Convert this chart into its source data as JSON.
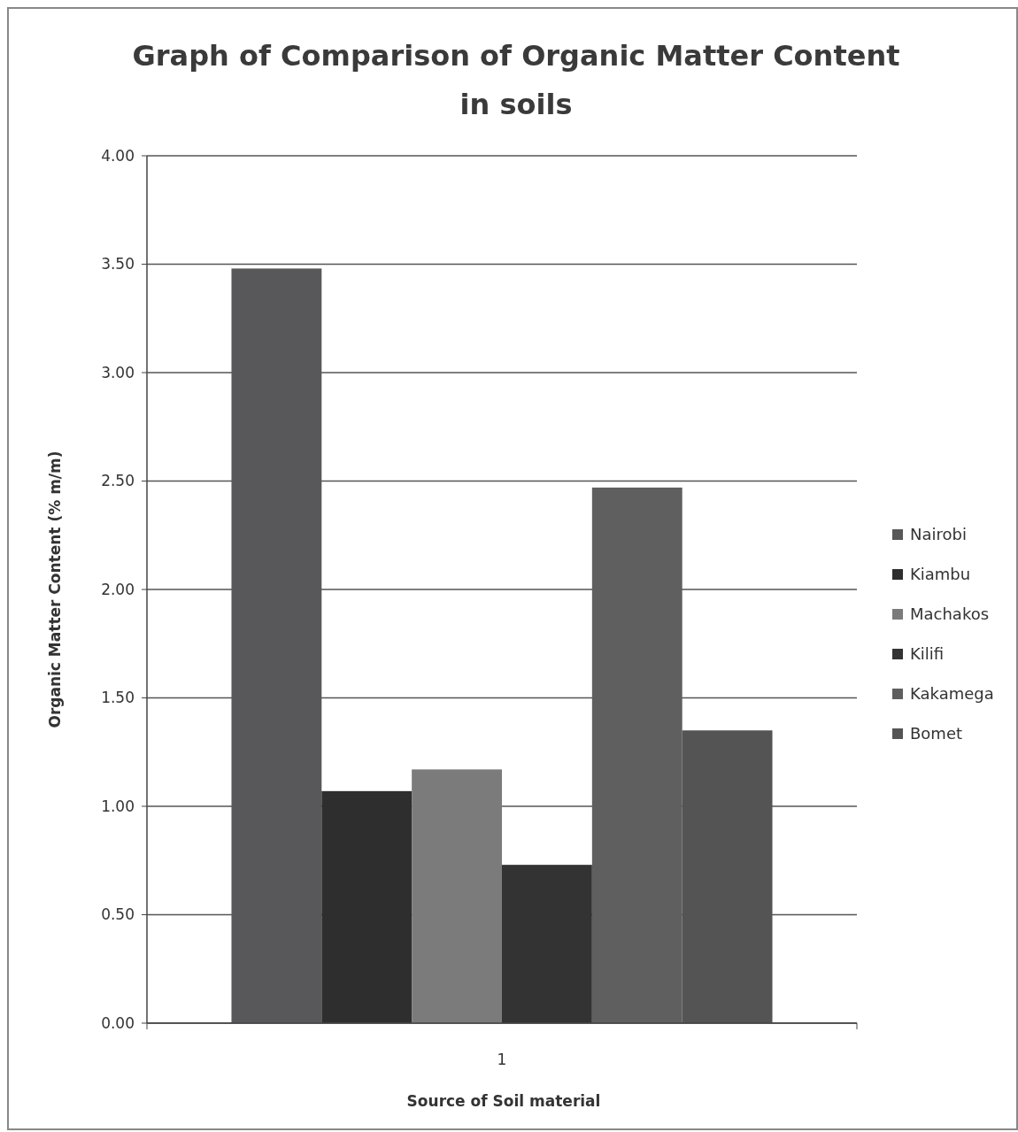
{
  "chart_data": {
    "type": "bar",
    "title": "Graph of Comparison of Organic Matter Content in soils",
    "xlabel": "Source of Soil material",
    "ylabel": "Organic Matter Content (% m/m)",
    "categories": [
      "1"
    ],
    "series": [
      {
        "name": "Nairobi",
        "color": "#58585a",
        "values": [
          3.48
        ]
      },
      {
        "name": "Kiambu",
        "color": "#2e2e2e",
        "values": [
          1.07
        ]
      },
      {
        "name": "Machakos",
        "color": "#7b7b7b",
        "values": [
          1.17
        ]
      },
      {
        "name": "Kilifi",
        "color": "#333333",
        "values": [
          0.73
        ]
      },
      {
        "name": "Kakamega",
        "color": "#5f5f5f",
        "values": [
          2.47
        ]
      },
      {
        "name": "Bomet",
        "color": "#545454",
        "values": [
          1.35
        ]
      }
    ],
    "ylim": [
      0,
      4
    ],
    "yticks": [
      {
        "value": 0,
        "label": "0.00"
      },
      {
        "value": 0.5,
        "label": "0.50"
      },
      {
        "value": 1,
        "label": "1.00"
      },
      {
        "value": 1.5,
        "label": "1.50"
      },
      {
        "value": 2,
        "label": "2.00"
      },
      {
        "value": 2.5,
        "label": "2.50"
      },
      {
        "value": 3,
        "label": "3.00"
      },
      {
        "value": 3.5,
        "label": "3.50"
      },
      {
        "value": 4,
        "label": "4.00"
      }
    ],
    "grid": "y",
    "legend": "right"
  }
}
